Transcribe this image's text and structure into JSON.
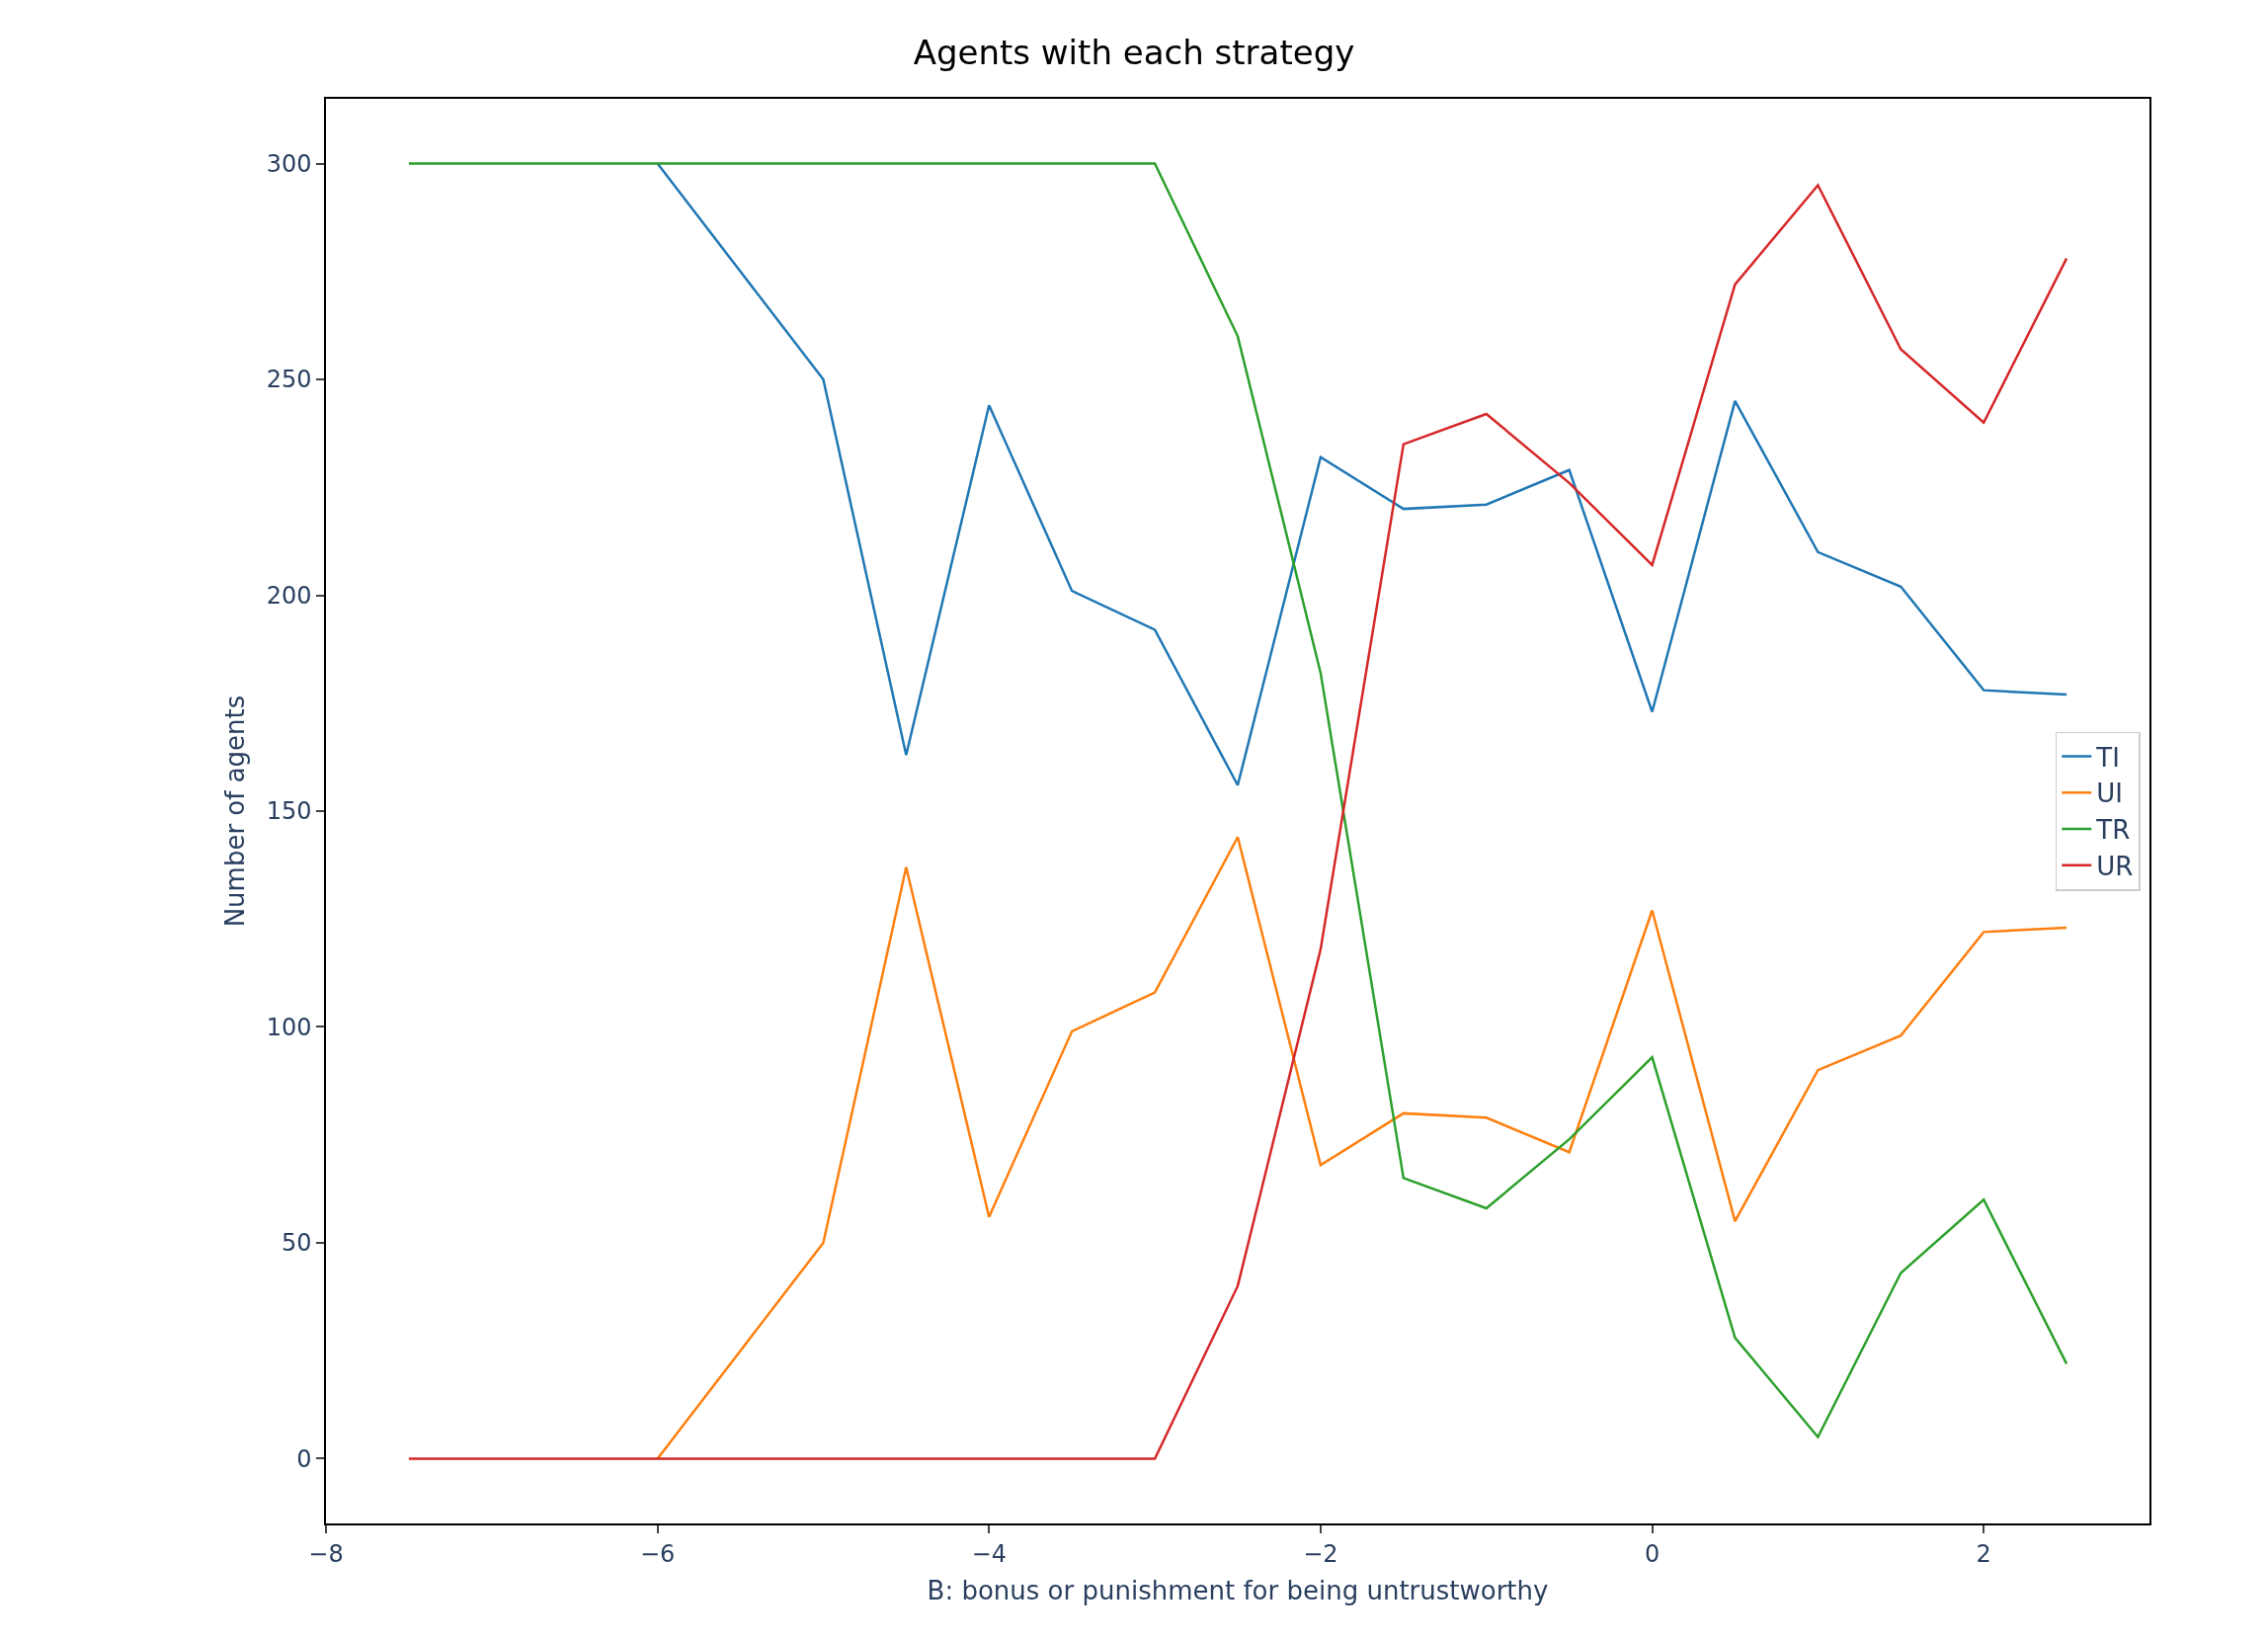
{
  "chart_data": {
    "type": "line",
    "title": "Agents with each strategy",
    "xlabel": "B: bonus or punishment for being untrustworthy",
    "ylabel": "Number of agents",
    "x": [
      -7.5,
      -7,
      -6.5,
      -6,
      -5.5,
      -5,
      -4.5,
      -4,
      -3.5,
      -3,
      -2.5,
      -2,
      -1.5,
      -1,
      -0.5,
      0,
      0.5,
      1,
      1.5,
      2,
      2.5
    ],
    "series": [
      {
        "name": "TI",
        "color": "#1f77b4",
        "values": [
          null,
          null,
          null,
          300,
          275,
          250,
          163,
          244,
          201,
          192,
          156,
          232,
          220,
          221,
          229,
          173,
          245,
          210,
          202,
          178,
          177
        ]
      },
      {
        "name": "UI",
        "color": "#ff7f0e",
        "values": [
          null,
          null,
          null,
          0,
          25,
          50,
          137,
          56,
          99,
          108,
          144,
          68,
          80,
          79,
          71,
          127,
          55,
          90,
          98,
          122,
          123
        ]
      },
      {
        "name": "TR",
        "color": "#2ca02c",
        "values": [
          300,
          300,
          300,
          300,
          300,
          300,
          300,
          300,
          300,
          300,
          260,
          182,
          65,
          58,
          74,
          93,
          28,
          5,
          43,
          60,
          22
        ]
      },
      {
        "name": "UR",
        "color": "#d62728",
        "values": [
          0,
          0,
          0,
          0,
          0,
          0,
          0,
          0,
          0,
          0,
          40,
          118,
          235,
          242,
          226,
          207,
          272,
          295,
          257,
          240,
          278
        ]
      }
    ],
    "xlim": [
      -8,
      3
    ],
    "ylim": [
      -15,
      315
    ],
    "xticks": [
      -8,
      -6,
      -4,
      -2,
      0,
      2
    ],
    "yticks": [
      0,
      50,
      100,
      150,
      200,
      250,
      300
    ],
    "grid": false,
    "legend": "right",
    "marker": "none",
    "line_style": "solid"
  }
}
